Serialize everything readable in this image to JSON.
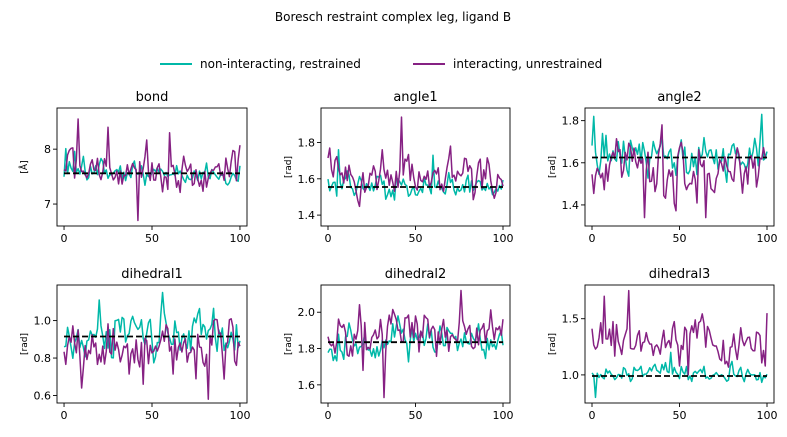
{
  "figure": {
    "title": "Boresch restraint complex leg, ligand B"
  },
  "legend": {
    "placement": "top-center",
    "entries": [
      {
        "label": "non-interacting, restrained",
        "color": "#00b8a8"
      },
      {
        "label": "interacting, unrestrained",
        "color": "#862183"
      }
    ]
  },
  "colors": {
    "series_a": "#00b8a8",
    "series_b": "#862183",
    "reference": "#000000"
  },
  "chart_data": [
    {
      "type": "line",
      "title": "bond",
      "ylabel": "[Å]",
      "xlim": [
        -4,
        104
      ],
      "ylim": [
        6.6,
        8.75
      ],
      "xticks": [
        0,
        50,
        100
      ],
      "yticks": [
        7,
        8
      ],
      "reference_line": 7.56,
      "series": [
        {
          "name": "non-interacting, restrained",
          "center": 7.56,
          "amp": 0.15,
          "seed": 11,
          "spikes": [
            [
              1,
              0.45
            ],
            [
              6,
              0.4
            ]
          ]
        },
        {
          "name": "interacting, unrestrained",
          "center": 7.6,
          "amp": 0.3,
          "seed": 12,
          "spikes": [
            [
              8,
              0.95
            ],
            [
              42,
              -0.9
            ],
            [
              25,
              0.8
            ],
            [
              60,
              0.7
            ]
          ]
        }
      ]
    },
    {
      "type": "line",
      "title": "angle1",
      "ylabel": "[rad]",
      "xlim": [
        -4,
        104
      ],
      "ylim": [
        1.34,
        1.99
      ],
      "xticks": [
        0,
        50,
        100
      ],
      "yticks": [
        1.4,
        1.6,
        1.8
      ],
      "reference_line": 1.555,
      "series": [
        {
          "name": "non-interacting, restrained",
          "center": 1.56,
          "amp": 0.05,
          "seed": 21,
          "spikes": [
            [
              6,
              0.2
            ],
            [
              60,
              0.17
            ]
          ]
        },
        {
          "name": "interacting, unrestrained",
          "center": 1.6,
          "amp": 0.09,
          "seed": 22,
          "spikes": [
            [
              42,
              0.34
            ],
            [
              70,
              0.18
            ]
          ]
        }
      ]
    },
    {
      "type": "line",
      "title": "angle2",
      "ylabel": "[rad]",
      "xlim": [
        -4,
        104
      ],
      "ylim": [
        1.3,
        1.86
      ],
      "xticks": [
        0,
        50,
        100
      ],
      "yticks": [
        1.4,
        1.6,
        1.8
      ],
      "reference_line": 1.625,
      "series": [
        {
          "name": "non-interacting, restrained",
          "center": 1.63,
          "amp": 0.08,
          "seed": 31,
          "spikes": [
            [
              1,
              0.19
            ],
            [
              97,
              0.2
            ]
          ]
        },
        {
          "name": "interacting, unrestrained",
          "center": 1.56,
          "amp": 0.1,
          "seed": 32,
          "spikes": [
            [
              30,
              -0.22
            ],
            [
              65,
              -0.22
            ],
            [
              40,
              0.22
            ]
          ]
        }
      ]
    },
    {
      "type": "line",
      "title": "dihedral1",
      "ylabel": "[rad]",
      "xlim": [
        -4,
        104
      ],
      "ylim": [
        0.56,
        1.19
      ],
      "xticks": [
        0,
        50,
        100
      ],
      "yticks": [
        0.6,
        0.8,
        1.0
      ],
      "reference_line": 0.915,
      "series": [
        {
          "name": "non-interacting, restrained",
          "center": 0.93,
          "amp": 0.09,
          "seed": 41,
          "spikes": [
            [
              56,
              0.22
            ],
            [
              20,
              0.18
            ]
          ]
        },
        {
          "name": "interacting, unrestrained",
          "center": 0.86,
          "amp": 0.1,
          "seed": 42,
          "spikes": [
            [
              82,
              -0.28
            ],
            [
              10,
              -0.22
            ],
            [
              45,
              -0.2
            ]
          ]
        }
      ]
    },
    {
      "type": "line",
      "title": "dihedral2",
      "ylabel": "[rad]",
      "xlim": [
        -4,
        104
      ],
      "ylim": [
        1.5,
        2.15
      ],
      "xticks": [
        0,
        50,
        100
      ],
      "yticks": [
        1.6,
        1.8,
        2.0
      ],
      "reference_line": 1.835,
      "series": [
        {
          "name": "non-interacting, restrained",
          "center": 1.84,
          "amp": 0.07,
          "seed": 51,
          "spikes": [
            [
              40,
              0.14
            ]
          ]
        },
        {
          "name": "interacting, unrestrained",
          "center": 1.9,
          "amp": 0.09,
          "seed": 52,
          "spikes": [
            [
              32,
              -0.37
            ],
            [
              76,
              0.22
            ],
            [
              20,
              -0.22
            ]
          ]
        }
      ]
    },
    {
      "type": "line",
      "title": "dihedral3",
      "ylabel": "[rad]",
      "xlim": [
        -4,
        104
      ],
      "ylim": [
        0.75,
        1.8
      ],
      "xticks": [
        0,
        50,
        100
      ],
      "yticks": [
        1.0,
        1.5
      ],
      "reference_line": 0.99,
      "series": [
        {
          "name": "non-interacting, restrained",
          "center": 1.0,
          "amp": 0.06,
          "seed": 61,
          "spikes": [
            [
              2,
              -0.2
            ],
            [
              45,
              0.2
            ],
            [
              80,
              0.12
            ]
          ]
        },
        {
          "name": "interacting, unrestrained",
          "center": 1.3,
          "amp": 0.14,
          "seed": 62,
          "spikes": [
            [
              7,
              0.4
            ],
            [
              21,
              0.45
            ],
            [
              55,
              -0.3
            ],
            [
              100,
              0.25
            ]
          ]
        }
      ]
    }
  ]
}
